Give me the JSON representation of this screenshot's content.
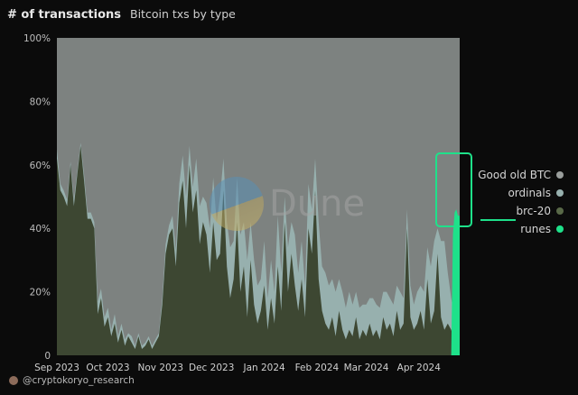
{
  "header": {
    "title": "# of transactions",
    "subtitle": "Bitcoin txs by type"
  },
  "watermark": {
    "text": "Dune"
  },
  "credit": {
    "text": "@cryptokoryo_research",
    "icon": "avatar-icon"
  },
  "colors": {
    "background": "#0b0b0b",
    "good_old_btc": "#7d8280",
    "ordinals": "#97b0ae",
    "brc20": "#3d4732",
    "runes": "#1ee18a",
    "highlight": "#1ee18a"
  },
  "chart_data": {
    "type": "area",
    "stacked": true,
    "normalized": true,
    "title": "",
    "xlabel": "",
    "ylabel": "",
    "ylim": [
      0,
      100
    ],
    "y_ticks": [
      "0",
      "20%",
      "40%",
      "60%",
      "80%",
      "100%"
    ],
    "x_ticks": [
      "Sep 2023",
      "Oct 2023",
      "Nov 2023",
      "Dec 2023",
      "Jan 2024",
      "Feb 2024",
      "Mar 2024",
      "Apr 2024"
    ],
    "x_range": [
      "2023-09-01",
      "2024-04-25"
    ],
    "x_tick_dates": [
      "2023-09-01",
      "2023-10-01",
      "2023-11-01",
      "2023-12-01",
      "2024-01-01",
      "2024-02-01",
      "2024-03-01",
      "2024-04-01"
    ],
    "grid": false,
    "legend_position": "right",
    "series": [
      {
        "name": "brc-20",
        "points": [
          [
            "2023-09-01",
            62
          ],
          [
            "2023-09-03",
            52
          ],
          [
            "2023-09-05",
            50
          ],
          [
            "2023-09-07",
            47
          ],
          [
            "2023-09-09",
            60
          ],
          [
            "2023-09-11",
            47
          ],
          [
            "2023-09-13",
            57
          ],
          [
            "2023-09-15",
            66
          ],
          [
            "2023-09-17",
            55
          ],
          [
            "2023-09-19",
            43
          ],
          [
            "2023-09-21",
            43
          ],
          [
            "2023-09-23",
            40
          ],
          [
            "2023-09-25",
            13
          ],
          [
            "2023-09-27",
            18
          ],
          [
            "2023-09-29",
            9
          ],
          [
            "2023-10-01",
            12
          ],
          [
            "2023-10-03",
            6
          ],
          [
            "2023-10-05",
            10
          ],
          [
            "2023-10-07",
            4
          ],
          [
            "2023-10-09",
            8
          ],
          [
            "2023-10-11",
            3
          ],
          [
            "2023-10-13",
            6
          ],
          [
            "2023-10-15",
            4
          ],
          [
            "2023-10-17",
            2
          ],
          [
            "2023-10-19",
            6
          ],
          [
            "2023-10-21",
            2
          ],
          [
            "2023-10-23",
            3
          ],
          [
            "2023-10-25",
            5
          ],
          [
            "2023-10-27",
            2
          ],
          [
            "2023-10-29",
            4
          ],
          [
            "2023-10-31",
            6
          ],
          [
            "2023-11-02",
            16
          ],
          [
            "2023-11-04",
            32
          ],
          [
            "2023-11-06",
            38
          ],
          [
            "2023-11-08",
            40
          ],
          [
            "2023-11-10",
            28
          ],
          [
            "2023-11-12",
            48
          ],
          [
            "2023-11-14",
            55
          ],
          [
            "2023-11-16",
            40
          ],
          [
            "2023-11-18",
            60
          ],
          [
            "2023-11-20",
            45
          ],
          [
            "2023-11-22",
            52
          ],
          [
            "2023-11-24",
            35
          ],
          [
            "2023-11-26",
            42
          ],
          [
            "2023-11-28",
            38
          ],
          [
            "2023-11-30",
            26
          ],
          [
            "2023-12-02",
            42
          ],
          [
            "2023-12-04",
            30
          ],
          [
            "2023-12-06",
            32
          ],
          [
            "2023-12-08",
            52
          ],
          [
            "2023-12-10",
            28
          ],
          [
            "2023-12-12",
            18
          ],
          [
            "2023-12-14",
            24
          ],
          [
            "2023-12-16",
            42
          ],
          [
            "2023-12-18",
            20
          ],
          [
            "2023-12-20",
            28
          ],
          [
            "2023-12-22",
            12
          ],
          [
            "2023-12-24",
            30
          ],
          [
            "2023-12-26",
            16
          ],
          [
            "2023-12-28",
            10
          ],
          [
            "2023-12-30",
            14
          ],
          [
            "2024-01-01",
            22
          ],
          [
            "2024-01-03",
            8
          ],
          [
            "2024-01-05",
            18
          ],
          [
            "2024-01-07",
            10
          ],
          [
            "2024-01-09",
            28
          ],
          [
            "2024-01-11",
            14
          ],
          [
            "2024-01-13",
            42
          ],
          [
            "2024-01-15",
            20
          ],
          [
            "2024-01-17",
            32
          ],
          [
            "2024-01-19",
            22
          ],
          [
            "2024-01-21",
            14
          ],
          [
            "2024-01-23",
            24
          ],
          [
            "2024-01-25",
            12
          ],
          [
            "2024-01-27",
            40
          ],
          [
            "2024-01-29",
            32
          ],
          [
            "2024-01-31",
            52
          ],
          [
            "2024-02-02",
            24
          ],
          [
            "2024-02-04",
            14
          ],
          [
            "2024-02-06",
            10
          ],
          [
            "2024-02-08",
            8
          ],
          [
            "2024-02-10",
            12
          ],
          [
            "2024-02-12",
            6
          ],
          [
            "2024-02-14",
            14
          ],
          [
            "2024-02-16",
            8
          ],
          [
            "2024-02-18",
            5
          ],
          [
            "2024-02-20",
            8
          ],
          [
            "2024-02-22",
            6
          ],
          [
            "2024-02-24",
            12
          ],
          [
            "2024-02-26",
            5
          ],
          [
            "2024-02-28",
            8
          ],
          [
            "2024-03-01",
            6
          ],
          [
            "2024-03-03",
            10
          ],
          [
            "2024-03-05",
            6
          ],
          [
            "2024-03-07",
            8
          ],
          [
            "2024-03-09",
            5
          ],
          [
            "2024-03-11",
            12
          ],
          [
            "2024-03-13",
            8
          ],
          [
            "2024-03-15",
            10
          ],
          [
            "2024-03-17",
            6
          ],
          [
            "2024-03-19",
            14
          ],
          [
            "2024-03-21",
            8
          ],
          [
            "2024-03-23",
            10
          ],
          [
            "2024-03-25",
            40
          ],
          [
            "2024-03-27",
            12
          ],
          [
            "2024-03-29",
            8
          ],
          [
            "2024-03-31",
            10
          ],
          [
            "2024-04-02",
            14
          ],
          [
            "2024-04-04",
            8
          ],
          [
            "2024-04-06",
            24
          ],
          [
            "2024-04-08",
            10
          ],
          [
            "2024-04-10",
            14
          ],
          [
            "2024-04-12",
            32
          ],
          [
            "2024-04-14",
            12
          ],
          [
            "2024-04-16",
            8
          ],
          [
            "2024-04-18",
            10
          ],
          [
            "2024-04-20",
            8
          ],
          [
            "2024-04-22",
            4
          ],
          [
            "2024-04-24",
            2
          ]
        ]
      },
      {
        "name": "ordinals",
        "points": [
          [
            "2023-09-01",
            3
          ],
          [
            "2023-09-03",
            2
          ],
          [
            "2023-09-05",
            2
          ],
          [
            "2023-09-07",
            2
          ],
          [
            "2023-09-09",
            1
          ],
          [
            "2023-09-11",
            2
          ],
          [
            "2023-09-13",
            1
          ],
          [
            "2023-09-15",
            1
          ],
          [
            "2023-09-17",
            2
          ],
          [
            "2023-09-19",
            2
          ],
          [
            "2023-09-21",
            2
          ],
          [
            "2023-09-23",
            2
          ],
          [
            "2023-09-25",
            4
          ],
          [
            "2023-09-27",
            3
          ],
          [
            "2023-09-29",
            3
          ],
          [
            "2023-10-01",
            3
          ],
          [
            "2023-10-03",
            2
          ],
          [
            "2023-10-05",
            3
          ],
          [
            "2023-10-07",
            2
          ],
          [
            "2023-10-09",
            2
          ],
          [
            "2023-10-11",
            2
          ],
          [
            "2023-10-13",
            1
          ],
          [
            "2023-10-15",
            2
          ],
          [
            "2023-10-17",
            1
          ],
          [
            "2023-10-19",
            1
          ],
          [
            "2023-10-21",
            1
          ],
          [
            "2023-10-23",
            1
          ],
          [
            "2023-10-25",
            1
          ],
          [
            "2023-10-27",
            1
          ],
          [
            "2023-10-29",
            1
          ],
          [
            "2023-10-31",
            1
          ],
          [
            "2023-11-02",
            2
          ],
          [
            "2023-11-04",
            3
          ],
          [
            "2023-11-06",
            3
          ],
          [
            "2023-11-08",
            4
          ],
          [
            "2023-11-10",
            5
          ],
          [
            "2023-11-12",
            6
          ],
          [
            "2023-11-14",
            8
          ],
          [
            "2023-11-16",
            10
          ],
          [
            "2023-11-18",
            6
          ],
          [
            "2023-11-20",
            8
          ],
          [
            "2023-11-22",
            10
          ],
          [
            "2023-11-24",
            12
          ],
          [
            "2023-11-26",
            8
          ],
          [
            "2023-11-28",
            10
          ],
          [
            "2023-11-30",
            14
          ],
          [
            "2023-12-02",
            14
          ],
          [
            "2023-12-04",
            12
          ],
          [
            "2023-12-06",
            18
          ],
          [
            "2023-12-08",
            10
          ],
          [
            "2023-12-10",
            14
          ],
          [
            "2023-12-12",
            16
          ],
          [
            "2023-12-14",
            12
          ],
          [
            "2023-12-16",
            14
          ],
          [
            "2023-12-18",
            18
          ],
          [
            "2023-12-20",
            14
          ],
          [
            "2023-12-22",
            18
          ],
          [
            "2023-12-24",
            12
          ],
          [
            "2023-12-26",
            14
          ],
          [
            "2023-12-28",
            12
          ],
          [
            "2023-12-30",
            10
          ],
          [
            "2024-01-01",
            14
          ],
          [
            "2024-01-03",
            10
          ],
          [
            "2024-01-05",
            12
          ],
          [
            "2024-01-07",
            10
          ],
          [
            "2024-01-09",
            16
          ],
          [
            "2024-01-11",
            12
          ],
          [
            "2024-01-13",
            8
          ],
          [
            "2024-01-15",
            14
          ],
          [
            "2024-01-17",
            10
          ],
          [
            "2024-01-19",
            16
          ],
          [
            "2024-01-21",
            12
          ],
          [
            "2024-01-23",
            12
          ],
          [
            "2024-01-25",
            10
          ],
          [
            "2024-01-27",
            14
          ],
          [
            "2024-01-29",
            14
          ],
          [
            "2024-01-31",
            10
          ],
          [
            "2024-02-02",
            18
          ],
          [
            "2024-02-04",
            14
          ],
          [
            "2024-02-06",
            16
          ],
          [
            "2024-02-08",
            14
          ],
          [
            "2024-02-10",
            12
          ],
          [
            "2024-02-12",
            14
          ],
          [
            "2024-02-14",
            10
          ],
          [
            "2024-02-16",
            12
          ],
          [
            "2024-02-18",
            10
          ],
          [
            "2024-02-20",
            12
          ],
          [
            "2024-02-22",
            10
          ],
          [
            "2024-02-24",
            8
          ],
          [
            "2024-02-26",
            10
          ],
          [
            "2024-02-28",
            8
          ],
          [
            "2024-03-01",
            10
          ],
          [
            "2024-03-03",
            8
          ],
          [
            "2024-03-05",
            12
          ],
          [
            "2024-03-07",
            8
          ],
          [
            "2024-03-09",
            10
          ],
          [
            "2024-03-11",
            8
          ],
          [
            "2024-03-13",
            12
          ],
          [
            "2024-03-15",
            8
          ],
          [
            "2024-03-17",
            10
          ],
          [
            "2024-03-19",
            8
          ],
          [
            "2024-03-21",
            12
          ],
          [
            "2024-03-23",
            8
          ],
          [
            "2024-03-25",
            6
          ],
          [
            "2024-03-27",
            10
          ],
          [
            "2024-03-29",
            8
          ],
          [
            "2024-03-31",
            10
          ],
          [
            "2024-04-02",
            8
          ],
          [
            "2024-04-04",
            12
          ],
          [
            "2024-04-06",
            10
          ],
          [
            "2024-04-08",
            18
          ],
          [
            "2024-04-10",
            22
          ],
          [
            "2024-04-12",
            8
          ],
          [
            "2024-04-14",
            24
          ],
          [
            "2024-04-16",
            28
          ],
          [
            "2024-04-18",
            16
          ],
          [
            "2024-04-20",
            10
          ],
          [
            "2024-04-22",
            8
          ],
          [
            "2024-04-24",
            4
          ]
        ]
      },
      {
        "name": "runes",
        "points": [
          [
            "2023-09-01",
            0
          ],
          [
            "2024-04-18",
            0
          ],
          [
            "2024-04-20",
            0
          ],
          [
            "2024-04-21",
            38
          ],
          [
            "2024-04-22",
            45
          ],
          [
            "2024-04-23",
            46
          ],
          [
            "2024-04-24",
            44
          ],
          [
            "2024-04-25",
            44
          ]
        ]
      },
      {
        "name": "Good old BTC",
        "points": "remainder to 100%"
      }
    ],
    "legend": [
      "Good old BTC",
      "ordinals",
      "brc-20",
      "runes"
    ]
  }
}
